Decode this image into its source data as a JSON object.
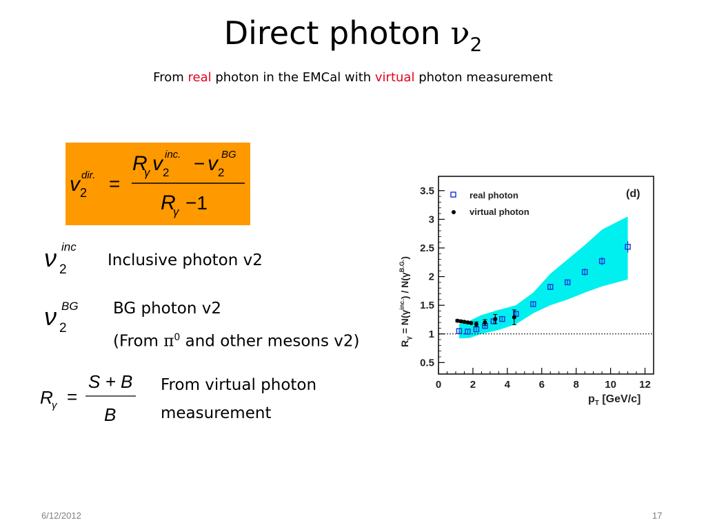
{
  "slide": {
    "title": "Direct photon ",
    "title_symbol": "ν",
    "title_subscript": "2",
    "subtitle": {
      "part1": "From ",
      "part2": "real",
      "part3": " photon in the EMCal with ",
      "part4": "virtual",
      "part5": " photon measurement",
      "highlight_color": "#e3001b"
    },
    "formula_main": {
      "lhs": "v",
      "lhs_sub": "2",
      "lhs_sup": "dir.",
      "num_R": "R",
      "num_gamma": "γ",
      "num_v": "v",
      "num_sub": "2",
      "num_sup": "inc.",
      "num_minus": "−",
      "num_v2": "v",
      "num_sub2": "2",
      "num_sup2": "BG",
      "den_R": "R",
      "den_gamma": "γ",
      "den_rest": "−1",
      "eq": "=",
      "box_color": "#ff9900"
    },
    "defs": [
      {
        "sym": "ν",
        "sub": "2",
        "sup": "inc",
        "text": "Inclusive photon v2"
      },
      {
        "sym": "ν",
        "sub": "2",
        "sup": "BG",
        "text": "BG photon v2",
        "text2a": "(From ",
        "text2pi": "π",
        "text2sup": "0",
        "text2b": " and other mesons v2)"
      },
      {
        "lhs": "R",
        "lhs_sub": "γ",
        "eq": "=",
        "num": "S + B",
        "den": "B",
        "text": "From virtual photon",
        "text2": "measurement"
      }
    ],
    "footer": {
      "date": "6/12/2012",
      "page": "17"
    }
  },
  "chart_data": {
    "type": "scatter",
    "ylabel": "R",
    "ylabel_sub": "γ",
    "ylabel_rest": " = N(γ",
    "ylabel_sup1": "inc.",
    "ylabel_mid": ") / N(γ",
    "ylabel_sup2": "B.G.",
    "ylabel_end": ")",
    "xlabel": "p",
    "xlabel_sub": "T",
    "xlabel_unit": " [GeV/c]",
    "panel_label": "(d)",
    "xlim": [
      0,
      12.5
    ],
    "ylim": [
      0.3,
      3.75
    ],
    "xticks": [
      0,
      2,
      4,
      6,
      8,
      10,
      12
    ],
    "yticks": [
      0.5,
      1,
      1.5,
      2,
      2.5,
      3,
      3.5
    ],
    "ytick_labels": [
      "0.5",
      "1",
      "1.5",
      "2",
      "2.5",
      "3",
      "3.5"
    ],
    "reference_line_y": 1,
    "legend": [
      {
        "label": "real photon",
        "marker": "open-square",
        "color": "#1f3ad6"
      },
      {
        "label": "virtual photon",
        "marker": "filled-circle",
        "color": "#000000"
      }
    ],
    "band": {
      "color": "#00f0f0",
      "x": [
        1.2,
        1.8,
        2.5,
        3.5,
        4.5,
        5.5,
        6.5,
        7.5,
        8.5,
        9.5,
        11.0
      ],
      "lower": [
        0.92,
        0.93,
        1.0,
        1.07,
        1.17,
        1.36,
        1.5,
        1.6,
        1.72,
        1.83,
        1.95
      ],
      "upper": [
        1.17,
        1.23,
        1.33,
        1.42,
        1.5,
        1.72,
        2.05,
        2.3,
        2.55,
        2.82,
        3.05
      ]
    },
    "series": [
      {
        "name": "real photon",
        "x": [
          1.2,
          1.7,
          2.2,
          2.7,
          3.2,
          3.7,
          4.5,
          5.5,
          6.5,
          7.5,
          8.5,
          9.5,
          11.0
        ],
        "y": [
          1.05,
          1.04,
          1.08,
          1.14,
          1.22,
          1.26,
          1.35,
          1.52,
          1.82,
          1.9,
          2.08,
          2.27,
          2.52
        ],
        "yerr": [
          0.03,
          0.03,
          0.03,
          0.03,
          0.03,
          0.03,
          0.04,
          0.04,
          0.05,
          0.05,
          0.06,
          0.07,
          0.1
        ]
      },
      {
        "name": "virtual photon",
        "x": [
          1.1,
          1.3,
          1.5,
          1.7,
          1.9,
          2.2,
          2.7,
          3.3,
          4.4
        ],
        "y": [
          1.23,
          1.22,
          1.21,
          1.2,
          1.19,
          1.17,
          1.2,
          1.26,
          1.29
        ],
        "yerr": [
          0.02,
          0.02,
          0.02,
          0.02,
          0.02,
          0.04,
          0.05,
          0.08,
          0.13
        ]
      }
    ]
  }
}
